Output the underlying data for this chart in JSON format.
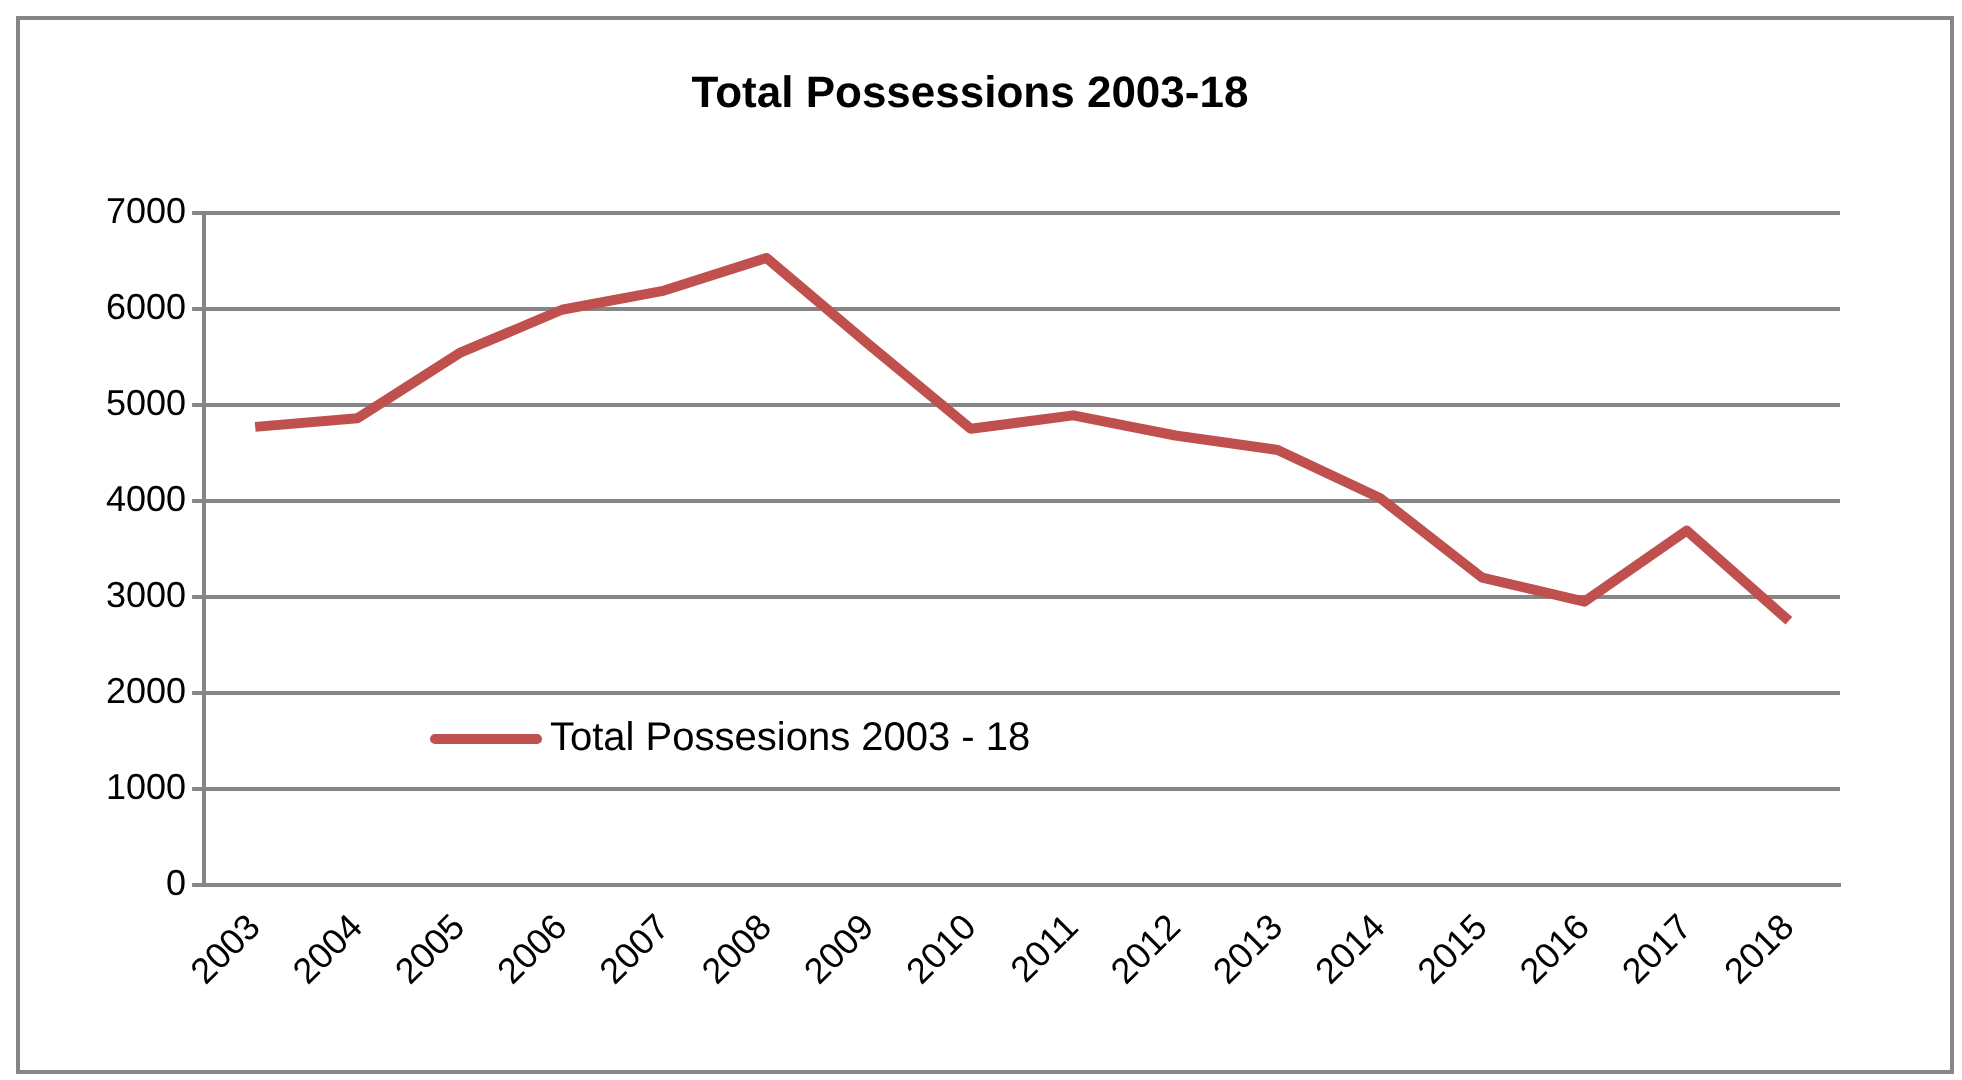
{
  "chart_data": {
    "type": "line",
    "title": "Total Possessions 2003-18",
    "categories": [
      "2003",
      "2004",
      "2005",
      "2006",
      "2007",
      "2008",
      "2009",
      "2010",
      "2011",
      "2012",
      "2013",
      "2014",
      "2015",
      "2016",
      "2017",
      "2018"
    ],
    "series": [
      {
        "name": "Total Possesions 2003 - 18",
        "color": "#c0504d",
        "values": [
          4770,
          4860,
          5540,
          5990,
          6190,
          6530,
          5630,
          4750,
          4890,
          4680,
          4530,
          4030,
          3200,
          2950,
          3690,
          2750
        ]
      }
    ],
    "ylim": [
      0,
      7000
    ],
    "yticks": [
      0,
      1000,
      2000,
      3000,
      4000,
      5000,
      6000,
      7000
    ],
    "grid": "y",
    "legend": "bottom",
    "marker": "none",
    "line_style": "solid"
  }
}
